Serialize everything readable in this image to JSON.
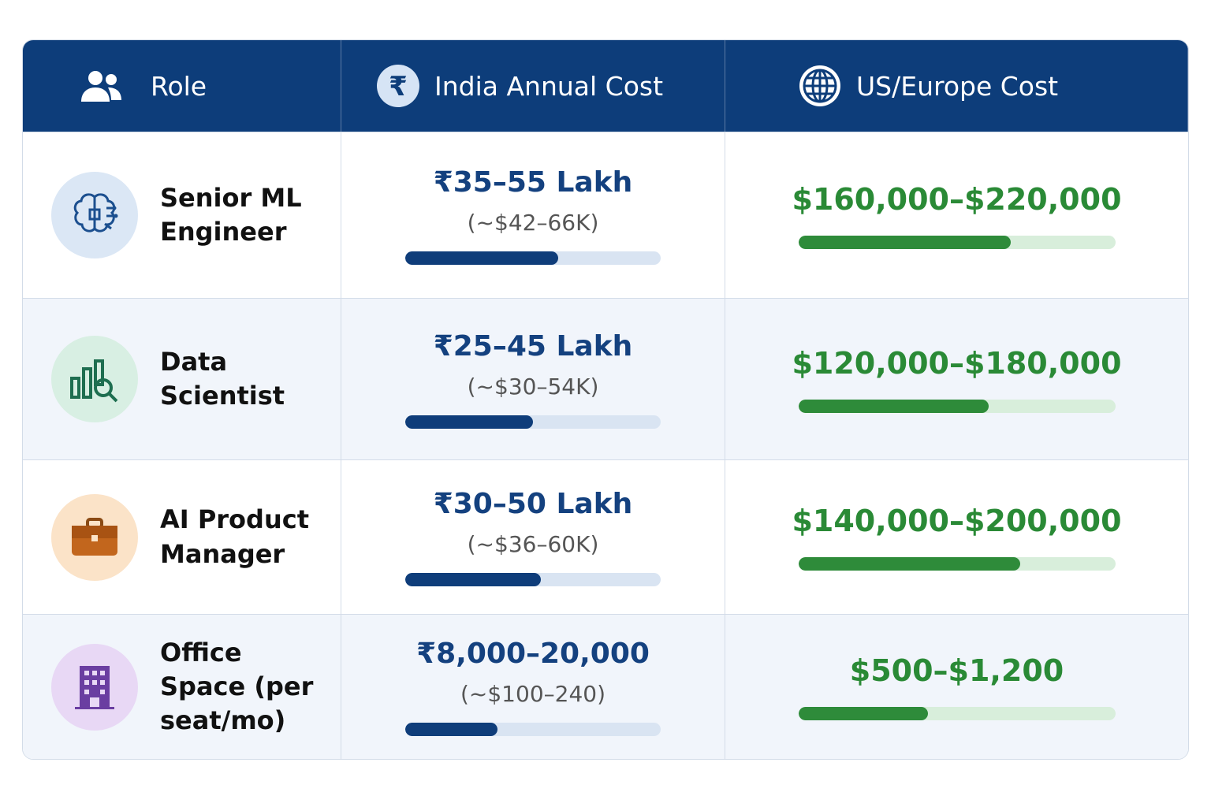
{
  "header": {
    "columns": [
      "Role",
      "India Annual Cost",
      "US/Europe Cost"
    ]
  },
  "rows": [
    {
      "role": "Senior ML Engineer",
      "india_cost": "₹35–55 Lakh",
      "india_usd": "(~$42–66K)",
      "india_bar": 60,
      "us_cost": "$160,000–$220,000",
      "us_bar": 67
    },
    {
      "role": "Data Scientist",
      "india_cost": "₹25–45 Lakh",
      "india_usd": "(~$30–54K)",
      "india_bar": 50,
      "us_cost": "$120,000–$180,000",
      "us_bar": 60
    },
    {
      "role": "AI Product Manager",
      "india_cost": "₹30–50 Lakh",
      "india_usd": "(~$36–60K)",
      "india_bar": 53,
      "us_cost": "$140,000–$200,000",
      "us_bar": 70
    },
    {
      "role": "Office Space (per seat/mo)",
      "india_cost": "₹8,000–20,000",
      "india_usd": "(~$100–240)",
      "india_bar": 36,
      "us_cost": "$500–$1,200",
      "us_bar": 41
    }
  ]
}
